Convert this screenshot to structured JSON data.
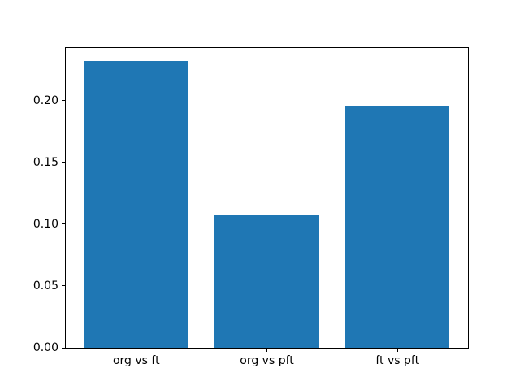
{
  "chart_data": {
    "type": "bar",
    "categories": [
      "org vs ft",
      "org vs pft",
      "ft vs pft"
    ],
    "values": [
      0.232,
      0.108,
      0.196
    ],
    "title": "",
    "xlabel": "",
    "ylabel": "",
    "ylim": [
      0,
      0.2426
    ],
    "xlim": [
      -0.54,
      2.54
    ],
    "bar_width": 0.8,
    "yticks": [
      0.0,
      0.05,
      0.1,
      0.15,
      0.2
    ],
    "ytick_labels": [
      "0.00",
      "0.05",
      "0.10",
      "0.15",
      "0.20"
    ],
    "bar_color": "#1f77b4",
    "spine_color": "#000000",
    "grid": false,
    "legend": null
  },
  "figure": {
    "background": "#ffffff"
  }
}
